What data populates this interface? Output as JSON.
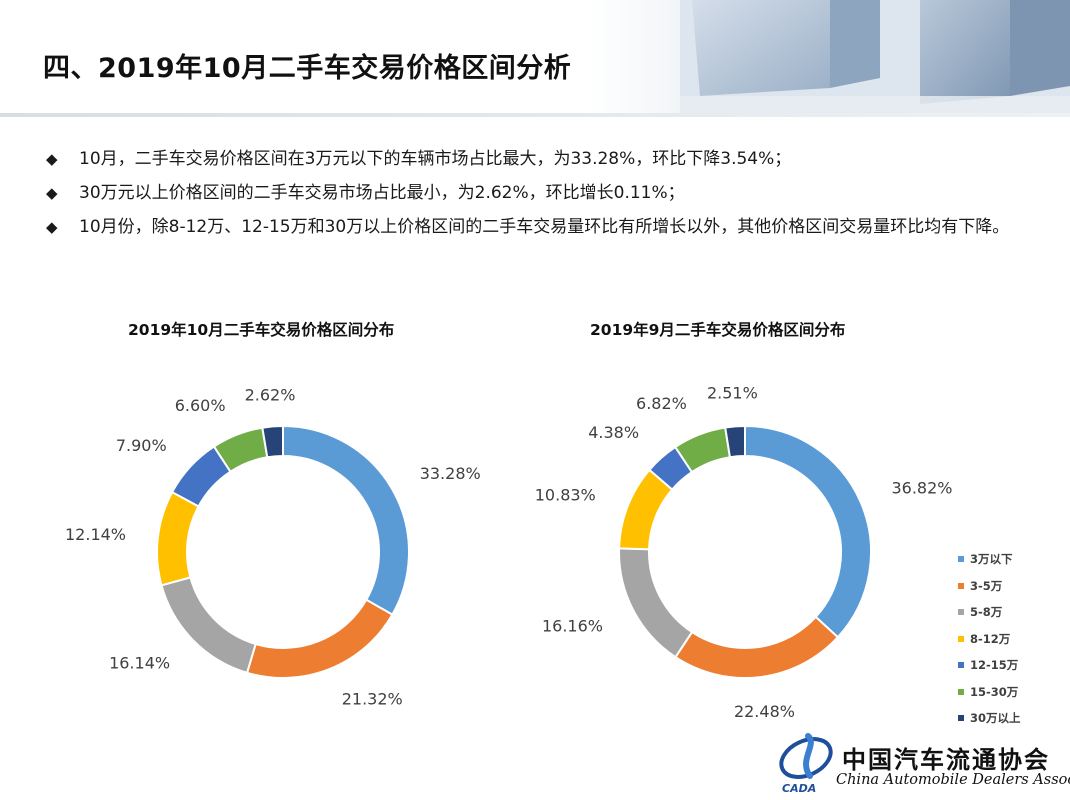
{
  "page": {
    "title": "四、2019年10月二手车交易价格区间分析"
  },
  "bullets": [
    "10月，二手车交易价格区间在3万元以下的车辆市场占比最大，为33.28%，环比下降3.54%；",
    "30万元以上价格区间的二手车交易市场占比最小，为2.62%，环比增长0.11%；",
    "10月份，除8-12万、12-15万和30万以上价格区间的二手车交易量环比有所增长以外，其他价格区间交易量环比均有下降。"
  ],
  "bullet_symbol": "◆",
  "chart_data": [
    {
      "type": "pie",
      "variant": "donut",
      "title": "2019年10月二手车交易价格区间分布",
      "categories": [
        "3万以下",
        "3-5万",
        "5-8万",
        "8-12万",
        "12-15万",
        "15-30万",
        "30万以上"
      ],
      "values": [
        33.28,
        21.32,
        16.14,
        12.14,
        7.9,
        6.6,
        2.62
      ],
      "labels": [
        "33.28%",
        "21.32%",
        "16.14%",
        "12.14%",
        "7.90%",
        "6.60%",
        "2.62%"
      ],
      "colors": [
        "#5B9BD5",
        "#ED7D31",
        "#A5A5A5",
        "#FFC000",
        "#4472C4",
        "#70AD47",
        "#264478"
      ]
    },
    {
      "type": "pie",
      "variant": "donut",
      "title": "2019年9月二手车交易价格区间分布",
      "categories": [
        "3万以下",
        "3-5万",
        "5-8万",
        "8-12万",
        "12-15万",
        "15-30万",
        "30万以上"
      ],
      "values": [
        36.82,
        22.48,
        16.16,
        10.83,
        4.38,
        6.82,
        2.51
      ],
      "labels": [
        "36.82%",
        "22.48%",
        "16.16%",
        "10.83%",
        "4.38%",
        "6.82%",
        "2.51%"
      ],
      "colors": [
        "#5B9BD5",
        "#ED7D31",
        "#A5A5A5",
        "#FFC000",
        "#4472C4",
        "#70AD47",
        "#264478"
      ],
      "legend_position": "right"
    }
  ],
  "logo": {
    "name_cn": "中国汽车流通协会",
    "name_en": "China Automobile Dealers Association",
    "mark_text": "CADA"
  }
}
